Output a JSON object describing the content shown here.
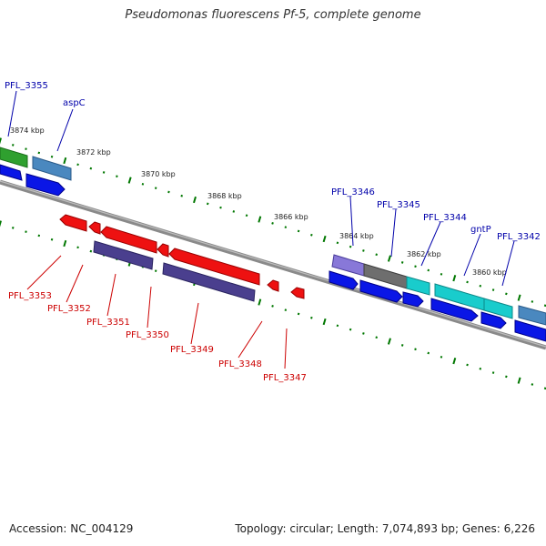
{
  "header": {
    "title": "Pseudomonas fluorescens Pf-5, complete genome"
  },
  "footer": {
    "accession": "Accession: NC_004129",
    "summary": "Topology: circular; Length: 7,074,893 bp; Genes: 6,226"
  },
  "colors": {
    "upper_label": "#0000aa",
    "lower_label": "#cc0000",
    "tick": "#007700",
    "backbone": "#808080"
  },
  "kbp_labels": [
    "3874 kbp",
    "3872 kbp",
    "3870 kbp",
    "3868 kbp",
    "3866 kbp",
    "3864 kbp",
    "3862 kbp",
    "3860 kbp"
  ],
  "upper_labels": [
    "PFL_3355",
    "aspC",
    "PFL_3346",
    "PFL_3345",
    "PFL_3344",
    "gntP",
    "PFL_3342"
  ],
  "lower_labels": [
    "PFL_3353",
    "PFL_3352",
    "PFL_3351",
    "PFL_3350",
    "PFL_3349",
    "PFL_3348",
    "PFL_3347"
  ]
}
